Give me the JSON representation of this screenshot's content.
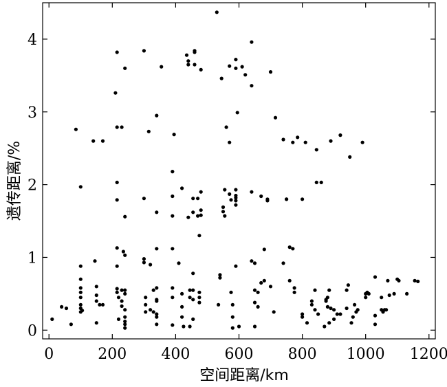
{
  "chart_data": {
    "type": "scatter",
    "title": "",
    "xlabel": "空间距离/km",
    "ylabel": "遗传距离/%",
    "xlim": [
      -20,
      1220
    ],
    "ylim": [
      -0.12,
      4.5
    ],
    "xticks": [
      0,
      200,
      400,
      600,
      800,
      1000,
      1200
    ],
    "yticks": [
      0,
      1,
      2,
      3,
      4
    ],
    "grid": false,
    "legend": "none",
    "marker_color": "#000000",
    "series": [
      {
        "points": [
          [
            10,
            0.15
          ],
          [
            40,
            0.32
          ],
          [
            55,
            0.3
          ],
          [
            70,
            0.08
          ],
          [
            85,
            2.76
          ],
          [
            100,
            1.97
          ],
          [
            100,
            0.88
          ],
          [
            100,
            0.7
          ],
          [
            100,
            0.58
          ],
          [
            100,
            0.52
          ],
          [
            100,
            0.45
          ],
          [
            100,
            0.35
          ],
          [
            100,
            0.3
          ],
          [
            100,
            0.25
          ],
          [
            105,
            0.27
          ],
          [
            140,
            2.6
          ],
          [
            145,
            0.95
          ],
          [
            150,
            0.6
          ],
          [
            150,
            0.48
          ],
          [
            150,
            0.4
          ],
          [
            150,
            0.1
          ],
          [
            160,
            0.35
          ],
          [
            170,
            2.6
          ],
          [
            170,
            0.35
          ],
          [
            210,
            3.26
          ],
          [
            215,
            3.82
          ],
          [
            215,
            2.79
          ],
          [
            215,
            2.03
          ],
          [
            215,
            1.79
          ],
          [
            215,
            1.13
          ],
          [
            215,
            0.88
          ],
          [
            215,
            0.57
          ],
          [
            215,
            0.52
          ],
          [
            220,
            0.45
          ],
          [
            220,
            0.15
          ],
          [
            230,
            2.79
          ],
          [
            230,
            0.55
          ],
          [
            230,
            0.4
          ],
          [
            230,
            0.33
          ],
          [
            235,
            1.08
          ],
          [
            240,
            3.6
          ],
          [
            240,
            1.56
          ],
          [
            240,
            1.03
          ],
          [
            240,
            0.55
          ],
          [
            240,
            0.5
          ],
          [
            240,
            0.28
          ],
          [
            240,
            0.18
          ],
          [
            240,
            0.12
          ],
          [
            240,
            0.08
          ],
          [
            240,
            0.03
          ],
          [
            300,
            3.84
          ],
          [
            300,
            1.81
          ],
          [
            300,
            0.98
          ],
          [
            300,
            0.93
          ],
          [
            305,
            0.45
          ],
          [
            305,
            0.35
          ],
          [
            305,
            0.25
          ],
          [
            315,
            2.73
          ],
          [
            320,
            0.9
          ],
          [
            320,
            0.28
          ],
          [
            330,
            0.55
          ],
          [
            330,
            0.25
          ],
          [
            340,
            2.95
          ],
          [
            340,
            1.62
          ],
          [
            340,
            1.12
          ],
          [
            340,
            0.58
          ],
          [
            340,
            0.42
          ],
          [
            340,
            0.4
          ],
          [
            340,
            0.22
          ],
          [
            340,
            0.18
          ],
          [
            340,
            0.08
          ],
          [
            355,
            3.62
          ],
          [
            390,
            2.18
          ],
          [
            390,
            1.84
          ],
          [
            390,
            1.57
          ],
          [
            390,
            1.12
          ],
          [
            390,
            0.58
          ],
          [
            390,
            0.45
          ],
          [
            390,
            0.07
          ],
          [
            395,
            2.69
          ],
          [
            410,
            0.92
          ],
          [
            420,
            1.95
          ],
          [
            420,
            0.5
          ],
          [
            420,
            0.32
          ],
          [
            420,
            0.18
          ],
          [
            425,
            0.05
          ],
          [
            435,
            3.78
          ],
          [
            440,
            3.7
          ],
          [
            440,
            3.65
          ],
          [
            440,
            1.55
          ],
          [
            445,
            0.55
          ],
          [
            445,
            0.45
          ],
          [
            445,
            0.05
          ],
          [
            455,
            1.81
          ],
          [
            455,
            1.62
          ],
          [
            455,
            0.78
          ],
          [
            455,
            0.55
          ],
          [
            455,
            0.42
          ],
          [
            455,
            0.15
          ],
          [
            460,
            3.84
          ],
          [
            460,
            3.82
          ],
          [
            460,
            3.65
          ],
          [
            470,
            1.81
          ],
          [
            470,
            1.57
          ],
          [
            475,
            1.3
          ],
          [
            475,
            0.52
          ],
          [
            475,
            0.45
          ],
          [
            475,
            0.38
          ],
          [
            480,
            1.9
          ],
          [
            480,
            1.65
          ],
          [
            480,
            1.58
          ],
          [
            480,
            3.58
          ],
          [
            530,
            4.37
          ],
          [
            535,
            0.35
          ],
          [
            540,
            0.72
          ],
          [
            540,
            0.76
          ],
          [
            545,
            3.46
          ],
          [
            550,
            1.69
          ],
          [
            550,
            1.63
          ],
          [
            555,
            1.57
          ],
          [
            555,
            1.93
          ],
          [
            560,
            2.79
          ],
          [
            570,
            3.63
          ],
          [
            570,
            2.58
          ],
          [
            570,
            1.87
          ],
          [
            575,
            1.79
          ],
          [
            575,
            0.52
          ],
          [
            580,
            0.35
          ],
          [
            580,
            0.18
          ],
          [
            580,
            0.03
          ],
          [
            590,
            3.72
          ],
          [
            590,
            3.6
          ],
          [
            590,
            1.93
          ],
          [
            590,
            1.85
          ],
          [
            590,
            1.82
          ],
          [
            590,
            1.78
          ],
          [
            590,
            1.72
          ],
          [
            590,
            0.88
          ],
          [
            595,
            2.99
          ],
          [
            600,
            0.05
          ],
          [
            610,
            3.62
          ],
          [
            620,
            3.51
          ],
          [
            640,
            3.36
          ],
          [
            640,
            3.96
          ],
          [
            640,
            1.9
          ],
          [
            640,
            0.95
          ],
          [
            650,
            0.92
          ],
          [
            650,
            0.55
          ],
          [
            650,
            0.38
          ],
          [
            650,
            0.05
          ],
          [
            660,
            0.52
          ],
          [
            660,
            0.32
          ],
          [
            670,
            1.84
          ],
          [
            670,
            0.65
          ],
          [
            680,
            1.11
          ],
          [
            680,
            0.68
          ],
          [
            690,
            1.8
          ],
          [
            690,
            1.78
          ],
          [
            700,
            3.55
          ],
          [
            700,
            0.6
          ],
          [
            710,
            0.25
          ],
          [
            715,
            2.92
          ],
          [
            740,
            2.62
          ],
          [
            740,
            0.92
          ],
          [
            750,
            1.8
          ],
          [
            750,
            1.8
          ],
          [
            760,
            1.14
          ],
          [
            760,
            0.68
          ],
          [
            770,
            1.12
          ],
          [
            770,
            2.58
          ],
          [
            775,
            0.58
          ],
          [
            775,
            0.52
          ],
          [
            785,
            2.65
          ],
          [
            800,
            1.8
          ],
          [
            800,
            0.22
          ],
          [
            800,
            0.18
          ],
          [
            810,
            2.58
          ],
          [
            815,
            0.1
          ],
          [
            830,
            0.4
          ],
          [
            830,
            0.35
          ],
          [
            840,
            0.55
          ],
          [
            840,
            0.28
          ],
          [
            845,
            2.03
          ],
          [
            845,
            2.48
          ],
          [
            850,
            0.22
          ],
          [
            860,
            2.03
          ],
          [
            870,
            0.05
          ],
          [
            875,
            0.42
          ],
          [
            875,
            0.4
          ],
          [
            880,
            0.32
          ],
          [
            880,
            0.45
          ],
          [
            885,
            0.55
          ],
          [
            885,
            0.1
          ],
          [
            890,
            2.6
          ],
          [
            890,
            0.3
          ],
          [
            900,
            0.28
          ],
          [
            900,
            0.15
          ],
          [
            910,
            0.22
          ],
          [
            920,
            2.68
          ],
          [
            920,
            0.22
          ],
          [
            940,
            0.55
          ],
          [
            940,
            0.3
          ],
          [
            945,
            0.62
          ],
          [
            950,
            2.38
          ],
          [
            955,
            0.1
          ],
          [
            960,
            0.18
          ],
          [
            965,
            0.35
          ],
          [
            970,
            0.25
          ],
          [
            975,
            0.28
          ],
          [
            990,
            2.58
          ],
          [
            1000,
            0.5
          ],
          [
            1000,
            0.45
          ],
          [
            1005,
            0.52
          ],
          [
            1010,
            0.5
          ],
          [
            1030,
            0.73
          ],
          [
            1030,
            0.08
          ],
          [
            1030,
            0.2
          ],
          [
            1050,
            0.28
          ],
          [
            1050,
            0.45
          ],
          [
            1055,
            0.25
          ],
          [
            1060,
            0.28
          ],
          [
            1065,
            0.28
          ],
          [
            1070,
            0.68
          ],
          [
            1075,
            0.48
          ],
          [
            1090,
            0.5
          ],
          [
            1100,
            0.7
          ],
          [
            1105,
            0.68
          ],
          [
            1130,
            0.5
          ],
          [
            1155,
            0.68
          ],
          [
            1165,
            0.67
          ]
        ]
      }
    ]
  }
}
